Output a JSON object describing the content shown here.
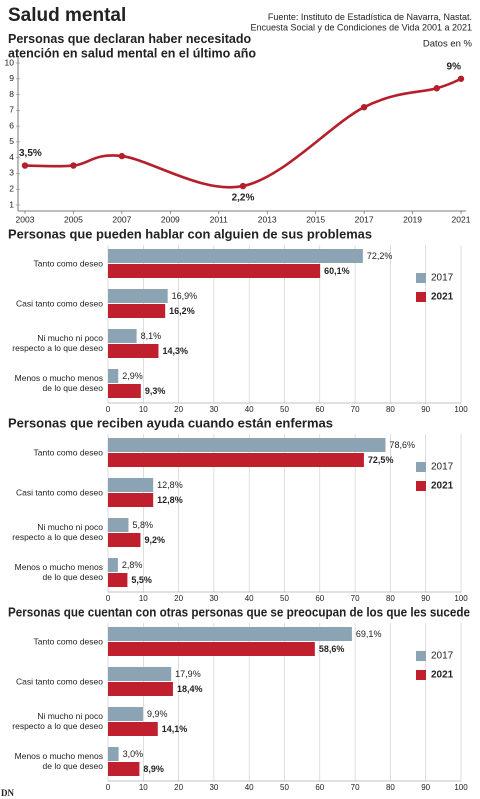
{
  "header": {
    "title": "Salud mental",
    "source": "Fuente: Instituto de Estadística de Navarra, Nastat.\nEncuesta Social y de Condiciones de Vida 2001 a 2021",
    "units": "Datos en %",
    "logo": "DN"
  },
  "chart_data": [
    {
      "type": "line",
      "title": "Personas que declaran haber necesitado\natención en salud mental en el último año",
      "x": [
        2003,
        2005,
        2007,
        2012,
        2017,
        2020,
        2021
      ],
      "series": [
        {
          "color": "#b51f2c",
          "values": [
            3.5,
            3.5,
            4.1,
            2.2,
            7.2,
            8.4,
            9
          ],
          "value_labels": [
            "3,5%",
            null,
            null,
            "2,2%",
            null,
            null,
            "9%"
          ]
        }
      ],
      "xlim": [
        2003,
        2021
      ],
      "xticks": [
        2003,
        2005,
        2007,
        2009,
        2011,
        2013,
        2015,
        2017,
        2019,
        2021
      ],
      "ylim": [
        1,
        10
      ],
      "yticks": [
        1,
        2,
        3,
        4,
        5,
        6,
        7,
        8,
        9,
        10
      ],
      "grid": false
    },
    {
      "type": "hbar",
      "title": "Personas que pueden hablar con alguien de sus problemas",
      "categories": [
        "Tanto como deseo",
        "Casi tanto como deseo",
        "Ni mucho ni poco\nrespecto a lo que deseo",
        "Menos o mucho menos\nde lo que deseo"
      ],
      "series": [
        {
          "name": "2017",
          "color": "#8ba3b3",
          "values": [
            72.2,
            16.9,
            8.1,
            2.9
          ],
          "value_labels": [
            "72,2%",
            "16,9%",
            "8,1%",
            "2,9%"
          ]
        },
        {
          "name": "2021",
          "color": "#c0202e",
          "values": [
            60.1,
            16.2,
            14.3,
            9.3
          ],
          "value_labels": [
            "60,1%",
            "16,2%",
            "14,3%",
            "9,3%"
          ]
        }
      ],
      "xlim": [
        0,
        100
      ],
      "xticks": [
        0,
        10,
        20,
        30,
        40,
        50,
        60,
        70,
        80,
        90,
        100
      ],
      "grid": true,
      "legend": "right"
    },
    {
      "type": "hbar",
      "title": "Personas que reciben ayuda cuando están enfermas",
      "categories": [
        "Tanto como deseo",
        "Casi tanto como deseo",
        "Ni mucho ni poco\nrespecto a lo que deseo",
        "Menos o mucho menos\nde lo que deseo"
      ],
      "series": [
        {
          "name": "2017",
          "color": "#8ba3b3",
          "values": [
            78.6,
            12.8,
            5.8,
            2.8
          ],
          "value_labels": [
            "78,6%",
            "12,8%",
            "5,8%",
            "2,8%"
          ]
        },
        {
          "name": "2021",
          "color": "#c0202e",
          "values": [
            72.5,
            12.8,
            9.2,
            5.5
          ],
          "value_labels": [
            "72,5%",
            "12,8%",
            "9,2%",
            "5,5%"
          ]
        }
      ],
      "xlim": [
        0,
        100
      ],
      "xticks": [
        0,
        10,
        20,
        30,
        40,
        50,
        60,
        70,
        80,
        90,
        100
      ],
      "grid": true,
      "legend": "right"
    },
    {
      "type": "hbar",
      "title": "Personas que cuentan con otras personas que se preocupan de los que les sucede",
      "categories": [
        "Tanto como deseo",
        "Casi tanto como deseo",
        "Ni mucho ni poco\nrespecto a lo que deseo",
        "Menos o mucho menos\nde lo que deseo"
      ],
      "series": [
        {
          "name": "2017",
          "color": "#8ba3b3",
          "values": [
            69.1,
            17.9,
            9.9,
            3.0
          ],
          "value_labels": [
            "69,1%",
            "17,9%",
            "9,9%",
            "3,0%"
          ]
        },
        {
          "name": "2021",
          "color": "#c0202e",
          "values": [
            58.6,
            18.4,
            14.1,
            8.9
          ],
          "value_labels": [
            "58,6%",
            "18,4%",
            "14,1%",
            "8,9%"
          ]
        }
      ],
      "xlim": [
        0,
        100
      ],
      "xticks": [
        0,
        10,
        20,
        30,
        40,
        50,
        60,
        70,
        80,
        90,
        100
      ],
      "grid": true,
      "legend": "right"
    }
  ]
}
